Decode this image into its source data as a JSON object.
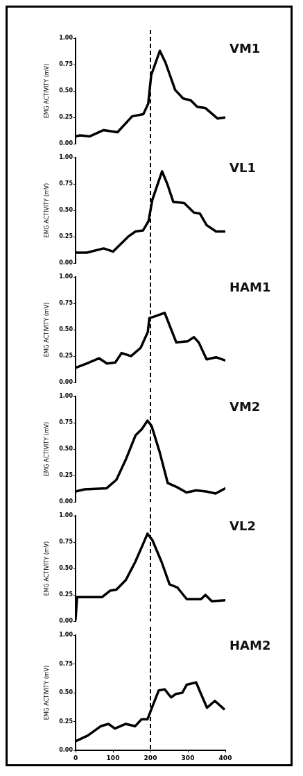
{
  "chart_data": [
    {
      "type": "line",
      "title": "VM1",
      "ylabel": "EMG ACTIVITY (mV)",
      "color": "#000000",
      "marker": "none",
      "line_style": "solid",
      "tick_labels": "y",
      "x": [
        0,
        12,
        37,
        75,
        112,
        151,
        181,
        194,
        202,
        225,
        240,
        266,
        287,
        308,
        325,
        346,
        379,
        400
      ],
      "values": [
        0.07,
        0.08,
        0.07,
        0.13,
        0.11,
        0.26,
        0.28,
        0.38,
        0.65,
        0.88,
        0.77,
        0.51,
        0.43,
        0.41,
        0.35,
        0.34,
        0.24,
        0.25
      ],
      "xlim": [
        0,
        400
      ],
      "ylim": [
        0,
        1
      ],
      "yticks": [
        {
          "value": 0,
          "label": "0.00"
        },
        {
          "value": 0.25,
          "label": "0.25"
        },
        {
          "value": 0.5,
          "label": "0.50"
        },
        {
          "value": 0.75,
          "label": "0.75"
        },
        {
          "value": 1,
          "label": "1.00"
        }
      ],
      "ref_lines": [
        {
          "axis": "x",
          "value": 200,
          "line_style": "dashed",
          "color": "#000000"
        }
      ]
    },
    {
      "type": "line",
      "title": "VL1",
      "ylabel": "EMG ACTIVITY (mV)",
      "color": "#000000",
      "marker": "none",
      "line_style": "solid",
      "tick_labels": "y",
      "x": [
        0,
        30,
        75,
        100,
        140,
        160,
        180,
        195,
        205,
        231,
        245,
        261,
        290,
        316,
        332,
        350,
        375,
        400
      ],
      "values": [
        0.1,
        0.1,
        0.14,
        0.11,
        0.25,
        0.3,
        0.31,
        0.4,
        0.6,
        0.87,
        0.75,
        0.58,
        0.57,
        0.48,
        0.47,
        0.36,
        0.3,
        0.3
      ],
      "xlim": [
        0,
        400
      ],
      "ylim": [
        0,
        1
      ],
      "yticks": [
        {
          "value": 0,
          "label": "0.00"
        },
        {
          "value": 0.25,
          "label": "0.25"
        },
        {
          "value": 0.5,
          "label": "0.50"
        },
        {
          "value": 0.75,
          "label": "0.75"
        },
        {
          "value": 1,
          "label": "1.00"
        }
      ],
      "ref_lines": [
        {
          "axis": "x",
          "value": 200,
          "line_style": "dashed",
          "color": "#000000"
        }
      ]
    },
    {
      "type": "line",
      "title": "HAM1",
      "ylabel": "EMG ACTIVITY (mV)",
      "color": "#000000",
      "marker": "none",
      "line_style": "solid",
      "tick_labels": "y",
      "x": [
        0,
        29,
        63,
        84,
        106,
        123,
        148,
        174,
        193,
        197,
        214,
        238,
        269,
        299,
        316,
        329,
        350,
        375,
        400
      ],
      "values": [
        0.14,
        0.18,
        0.23,
        0.18,
        0.19,
        0.28,
        0.25,
        0.33,
        0.48,
        0.61,
        0.63,
        0.66,
        0.38,
        0.39,
        0.43,
        0.38,
        0.22,
        0.24,
        0.21
      ],
      "xlim": [
        0,
        400
      ],
      "ylim": [
        0,
        1
      ],
      "yticks": [
        {
          "value": 0,
          "label": "0.00"
        },
        {
          "value": 0.25,
          "label": "0.25"
        },
        {
          "value": 0.5,
          "label": "0.50"
        },
        {
          "value": 0.75,
          "label": "0.75"
        },
        {
          "value": 1,
          "label": "1.00"
        }
      ],
      "ref_lines": [
        {
          "axis": "x",
          "value": 200,
          "line_style": "dashed",
          "color": "#000000"
        }
      ]
    },
    {
      "type": "line",
      "title": "VM2",
      "ylabel": "EMG ACTIVITY (mV)",
      "color": "#000000",
      "marker": "none",
      "line_style": "solid",
      "tick_labels": "y",
      "x": [
        0,
        24,
        83,
        109,
        134,
        160,
        177,
        192,
        203,
        224,
        246,
        271,
        296,
        322,
        348,
        374,
        400
      ],
      "values": [
        0.1,
        0.12,
        0.13,
        0.21,
        0.4,
        0.63,
        0.69,
        0.77,
        0.72,
        0.48,
        0.18,
        0.14,
        0.09,
        0.11,
        0.1,
        0.08,
        0.13
      ],
      "xlim": [
        0,
        400
      ],
      "ylim": [
        0,
        1
      ],
      "yticks": [
        {
          "value": 0,
          "label": "0.00"
        },
        {
          "value": 0.25,
          "label": "0.25"
        },
        {
          "value": 0.5,
          "label": "0.50"
        },
        {
          "value": 0.75,
          "label": "0.75"
        },
        {
          "value": 1,
          "label": "1.00"
        }
      ],
      "ref_lines": [
        {
          "axis": "x",
          "value": 200,
          "line_style": "dashed",
          "color": "#000000"
        }
      ]
    },
    {
      "type": "line",
      "title": "VL2",
      "ylabel": "EMG ACTIVITY (mV)",
      "color": "#000000",
      "marker": "none",
      "line_style": "solid",
      "tick_labels": "y",
      "x": [
        0,
        4,
        71,
        92,
        109,
        134,
        159,
        180,
        192,
        205,
        230,
        251,
        272,
        297,
        335,
        347,
        364,
        400
      ],
      "values": [
        0.02,
        0.23,
        0.23,
        0.29,
        0.3,
        0.39,
        0.56,
        0.73,
        0.83,
        0.77,
        0.56,
        0.35,
        0.32,
        0.21,
        0.21,
        0.25,
        0.19,
        0.2
      ],
      "xlim": [
        0,
        400
      ],
      "ylim": [
        0,
        1
      ],
      "yticks": [
        {
          "value": 0,
          "label": "0.00"
        },
        {
          "value": 0.25,
          "label": "0.25"
        },
        {
          "value": 0.5,
          "label": "0.50"
        },
        {
          "value": 0.75,
          "label": "0.75"
        },
        {
          "value": 1,
          "label": "1.00"
        }
      ],
      "ref_lines": [
        {
          "axis": "x",
          "value": 200,
          "line_style": "dashed",
          "color": "#000000"
        }
      ]
    },
    {
      "type": "line",
      "title": "HAM2",
      "ylabel": "EMG ACTIVITY (mV)",
      "color": "#000000",
      "marker": "none",
      "line_style": "solid",
      "x": [
        0,
        33,
        67,
        88,
        105,
        134,
        159,
        176,
        192,
        205,
        222,
        238,
        255,
        268,
        285,
        297,
        322,
        335,
        351,
        372,
        396
      ],
      "values": [
        0.08,
        0.13,
        0.21,
        0.23,
        0.19,
        0.23,
        0.21,
        0.27,
        0.27,
        0.38,
        0.52,
        0.53,
        0.46,
        0.49,
        0.5,
        0.57,
        0.59,
        0.49,
        0.37,
        0.43,
        0.36
      ],
      "xlim": [
        0,
        400
      ],
      "xticks": [
        0,
        100,
        200,
        300,
        400
      ],
      "ylim": [
        0,
        1
      ],
      "yticks": [
        {
          "value": 0,
          "label": "0.00"
        },
        {
          "value": 0.25,
          "label": "0.25"
        },
        {
          "value": 0.5,
          "label": "0.50"
        },
        {
          "value": 0.75,
          "label": "0.75"
        },
        {
          "value": 1,
          "label": "1.00"
        }
      ],
      "ref_lines": [
        {
          "axis": "x",
          "value": 200,
          "line_style": "dashed",
          "color": "#000000"
        }
      ]
    }
  ]
}
